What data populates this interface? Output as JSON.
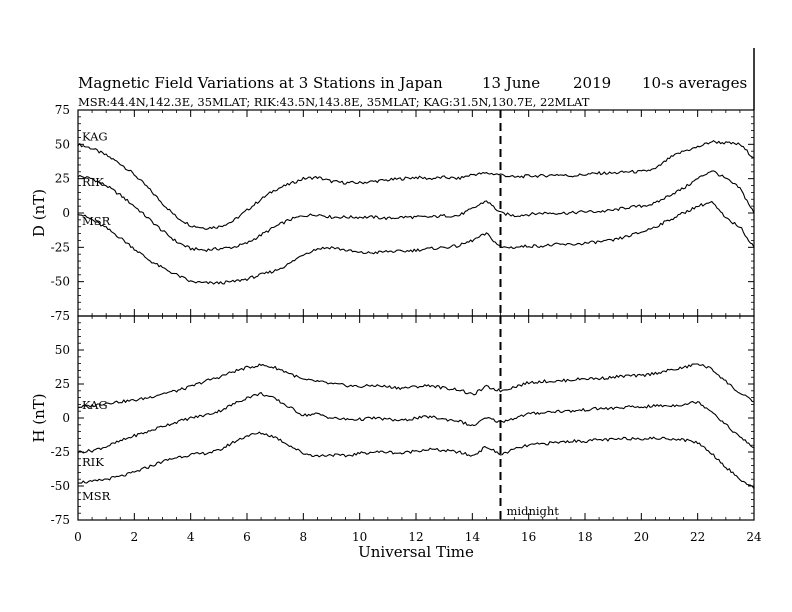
{
  "title": {
    "main": "Magnetic Field Variations at 3 Stations in Japan",
    "date": "13 June",
    "year": "2019",
    "avg": "10-s averages",
    "stations": "MSR:44.4N,142.3E, 35MLAT;  RIK:43.5N,143.8E, 35MLAT;  KAG:31.5N,130.7E, 22MLAT"
  },
  "xlabel": "Universal Time",
  "midnight_label": "midnight",
  "chart_data": [
    {
      "type": "line",
      "panel": "top",
      "ylabel": "D (nT)",
      "xlim": [
        0,
        24
      ],
      "ylim": [
        -75,
        75
      ],
      "xticks": [
        0,
        2,
        4,
        6,
        8,
        10,
        12,
        14,
        16,
        18,
        20,
        22,
        24
      ],
      "yticks": [
        -75,
        -50,
        -25,
        0,
        25,
        50,
        75
      ],
      "vline_x": 15,
      "series": [
        {
          "name": "KAG",
          "x": [
            0,
            0.5,
            1,
            1.5,
            2,
            2.5,
            3,
            3.5,
            4,
            4.5,
            5,
            5.5,
            6,
            6.5,
            7,
            7.5,
            8,
            8.5,
            9,
            9.5,
            10,
            10.5,
            11,
            11.5,
            12,
            12.5,
            13,
            13.5,
            14,
            14.5,
            15,
            15.5,
            16,
            16.5,
            17,
            17.5,
            18,
            18.5,
            19,
            19.5,
            20,
            20.5,
            21,
            21.5,
            22,
            22.5,
            23,
            23.5,
            24
          ],
          "y": [
            50,
            47,
            42,
            36,
            28,
            18,
            7,
            -3,
            -9,
            -11,
            -10,
            -6,
            2,
            10,
            17,
            21,
            25,
            26,
            23,
            22,
            22,
            23,
            24,
            25,
            26,
            25,
            26,
            25,
            28,
            29,
            28,
            26,
            27,
            27,
            28,
            27,
            28,
            29,
            29,
            30,
            30,
            32,
            40,
            45,
            48,
            52,
            51,
            50,
            40
          ]
        },
        {
          "name": "RIK",
          "x": [
            0,
            0.5,
            1,
            1.5,
            2,
            2.5,
            3,
            3.5,
            4,
            4.5,
            5,
            5.5,
            6,
            6.5,
            7,
            7.5,
            8,
            8.5,
            9,
            9.5,
            10,
            10.5,
            11,
            11.5,
            12,
            12.5,
            13,
            13.5,
            14,
            14.5,
            15,
            15.5,
            16,
            16.5,
            17,
            17.5,
            18,
            18.5,
            19,
            19.5,
            20,
            20.5,
            21,
            21.5,
            22,
            22.5,
            23,
            23.5,
            24
          ],
          "y": [
            27,
            25,
            20,
            13,
            5,
            -4,
            -13,
            -21,
            -26,
            -27,
            -26,
            -25,
            -22,
            -16,
            -10,
            -5,
            -2,
            -1,
            -3,
            -3,
            -3,
            -3,
            -4,
            -3,
            -3,
            -3,
            -2,
            -2,
            3,
            9,
            0,
            -2,
            -1,
            0,
            0,
            0,
            1,
            1,
            2,
            4,
            5,
            7,
            13,
            18,
            25,
            31,
            25,
            18,
            0
          ]
        },
        {
          "name": "MSR",
          "x": [
            0,
            0.5,
            1,
            1.5,
            2,
            2.5,
            3,
            3.5,
            4,
            4.5,
            5,
            5.5,
            6,
            6.5,
            7,
            7.5,
            8,
            8.5,
            9,
            9.5,
            10,
            10.5,
            11,
            11.5,
            12,
            12.5,
            13,
            13.5,
            14,
            14.5,
            15,
            15.5,
            16,
            16.5,
            17,
            17.5,
            18,
            18.5,
            19,
            19.5,
            20,
            20.5,
            21,
            21.5,
            22,
            22.5,
            23,
            23.5,
            24
          ],
          "y": [
            0,
            -5,
            -11,
            -18,
            -26,
            -34,
            -40,
            -45,
            -50,
            -51,
            -51,
            -50,
            -48,
            -45,
            -42,
            -37,
            -30,
            -26,
            -25,
            -27,
            -29,
            -29,
            -28,
            -28,
            -27,
            -26,
            -25,
            -24,
            -20,
            -15,
            -25,
            -25,
            -24,
            -24,
            -23,
            -23,
            -22,
            -21,
            -20,
            -17,
            -14,
            -10,
            -5,
            0,
            5,
            8,
            -4,
            -10,
            -25
          ]
        }
      ]
    },
    {
      "type": "line",
      "panel": "bottom",
      "ylabel": "H (nT)",
      "xlim": [
        0,
        24
      ],
      "ylim": [
        -75,
        75
      ],
      "xticks": [
        0,
        2,
        4,
        6,
        8,
        10,
        12,
        14,
        16,
        18,
        20,
        22,
        24
      ],
      "yticks": [
        -75,
        -50,
        -25,
        0,
        25,
        50,
        75
      ],
      "vline_x": 15,
      "series": [
        {
          "name": "KAG",
          "x": [
            0,
            0.5,
            1,
            1.5,
            2,
            2.5,
            3,
            3.5,
            4,
            4.5,
            5,
            5.5,
            6,
            6.5,
            7,
            7.5,
            8,
            8.5,
            9,
            9.5,
            10,
            10.5,
            11,
            11.5,
            12,
            12.5,
            13,
            13.5,
            14,
            14.5,
            15,
            15.5,
            16,
            16.5,
            17,
            17.5,
            18,
            18.5,
            19,
            19.5,
            20,
            20.5,
            21,
            21.5,
            22,
            22.5,
            23,
            23.5,
            24
          ],
          "y": [
            8,
            9,
            11,
            12,
            13,
            15,
            18,
            20,
            23,
            27,
            30,
            34,
            37,
            39,
            37,
            33,
            28,
            27,
            25,
            24,
            23,
            24,
            23,
            22,
            23,
            24,
            22,
            21,
            17,
            23,
            20,
            23,
            26,
            27,
            27,
            28,
            29,
            29,
            30,
            31,
            31,
            33,
            35,
            37,
            40,
            36,
            27,
            18,
            12
          ]
        },
        {
          "name": "RIK",
          "x": [
            0,
            0.5,
            1,
            1.5,
            2,
            2.5,
            3,
            3.5,
            4,
            4.5,
            5,
            5.5,
            6,
            6.5,
            7,
            7.5,
            8,
            8.5,
            9,
            9.5,
            10,
            10.5,
            11,
            11.5,
            12,
            12.5,
            13,
            13.5,
            14,
            14.5,
            15,
            15.5,
            16,
            16.5,
            17,
            17.5,
            18,
            18.5,
            19,
            19.5,
            20,
            20.5,
            21,
            21.5,
            22,
            22.5,
            23,
            23.5,
            24
          ],
          "y": [
            -25,
            -24,
            -21,
            -17,
            -13,
            -10,
            -6,
            -3,
            0,
            2,
            5,
            10,
            15,
            18,
            14,
            8,
            2,
            3,
            0,
            -1,
            -1,
            0,
            -1,
            -2,
            0,
            1,
            -1,
            -2,
            -6,
            0,
            -3,
            0,
            3,
            4,
            5,
            5,
            6,
            7,
            7,
            8,
            8,
            9,
            9,
            10,
            12,
            5,
            -5,
            -14,
            -22
          ]
        },
        {
          "name": "MSR",
          "x": [
            0,
            0.5,
            1,
            1.5,
            2,
            2.5,
            3,
            3.5,
            4,
            4.5,
            5,
            5.5,
            6,
            6.5,
            7,
            7.5,
            8,
            8.5,
            9,
            9.5,
            10,
            10.5,
            11,
            11.5,
            12,
            12.5,
            13,
            13.5,
            14,
            14.5,
            15,
            15.5,
            16,
            16.5,
            17,
            17.5,
            18,
            18.5,
            19,
            19.5,
            20,
            20.5,
            21,
            21.5,
            22,
            22.5,
            23,
            23.5,
            24
          ],
          "y": [
            -47,
            -47,
            -45,
            -43,
            -40,
            -36,
            -32,
            -29,
            -27,
            -26,
            -24,
            -18,
            -13,
            -11,
            -14,
            -20,
            -26,
            -28,
            -27,
            -28,
            -26,
            -25,
            -25,
            -26,
            -24,
            -23,
            -24,
            -25,
            -28,
            -21,
            -27,
            -23,
            -20,
            -19,
            -18,
            -17,
            -17,
            -16,
            -16,
            -15,
            -15,
            -15,
            -15,
            -16,
            -18,
            -26,
            -36,
            -45,
            -52
          ]
        }
      ]
    }
  ]
}
